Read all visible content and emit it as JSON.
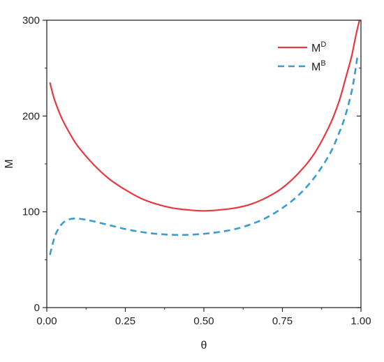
{
  "chart_data": {
    "type": "line",
    "title": "",
    "xlabel": "θ",
    "ylabel": "M",
    "xlim": [
      0,
      1
    ],
    "ylim": [
      0,
      300
    ],
    "x_ticks": [
      "0.00",
      "0.25",
      "0.50",
      "0.75",
      "1.00"
    ],
    "x_tick_values": [
      0,
      0.25,
      0.5,
      0.75,
      1.0
    ],
    "y_ticks": [
      "0",
      "100",
      "200",
      "300"
    ],
    "y_tick_values": [
      0,
      100,
      200,
      300
    ],
    "grid": false,
    "legend_position": "top-right",
    "series": [
      {
        "name": "M",
        "name_superscript": "D",
        "color": "#e8383d",
        "line_style": "solid",
        "x": [
          0.01,
          0.02,
          0.03,
          0.05,
          0.08,
          0.1,
          0.15,
          0.2,
          0.25,
          0.3,
          0.35,
          0.4,
          0.45,
          0.5,
          0.55,
          0.6,
          0.65,
          0.7,
          0.75,
          0.8,
          0.85,
          0.9,
          0.93,
          0.95,
          0.97,
          0.98,
          0.99,
          1.0
        ],
        "y": [
          235,
          222,
          212,
          196,
          178,
          168,
          149,
          134,
          123,
          114,
          108,
          104,
          102,
          101,
          102,
          104,
          108,
          115,
          125,
          140,
          160,
          190,
          215,
          238,
          262,
          278,
          293,
          305
        ]
      },
      {
        "name": "M",
        "name_superscript": "B",
        "color": "#3a9bd3",
        "line_style": "dashed",
        "x": [
          0.01,
          0.02,
          0.03,
          0.05,
          0.07,
          0.09,
          0.12,
          0.15,
          0.2,
          0.25,
          0.3,
          0.35,
          0.4,
          0.45,
          0.5,
          0.55,
          0.6,
          0.65,
          0.7,
          0.75,
          0.8,
          0.85,
          0.9,
          0.93,
          0.95,
          0.97,
          0.98,
          0.99
        ],
        "y": [
          55,
          68,
          78,
          88,
          92,
          93,
          92,
          90,
          86,
          82,
          79,
          77,
          76,
          76,
          77,
          79,
          82,
          87,
          94,
          104,
          117,
          135,
          160,
          182,
          200,
          225,
          243,
          265
        ]
      }
    ]
  }
}
